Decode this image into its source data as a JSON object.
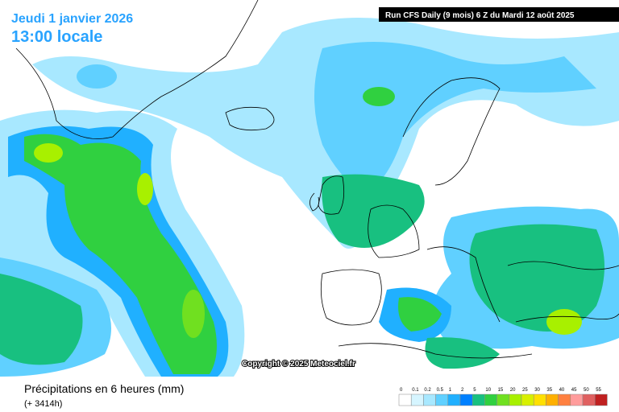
{
  "header": {
    "date": "Jeudi 1 janvier 2026",
    "time": "13:00 locale",
    "run": "Run CFS Daily (9 mois) 6 Z du Mardi 12 août 2025"
  },
  "copyright": "Copyright © 2025 Meteociel.fr",
  "footer": {
    "title": "Précipitations en 6 heures (mm)",
    "lead": "(+ 3414h)"
  },
  "scale": {
    "labels": [
      0,
      0.1,
      0.2,
      0.5,
      1,
      2,
      5,
      10,
      15,
      20,
      25,
      30,
      35,
      40,
      45,
      50,
      55
    ],
    "colors": [
      "#ffffff",
      "#d6f5ff",
      "#a8e8ff",
      "#60d0ff",
      "#20b0ff",
      "#0080ff",
      "#18c080",
      "#30d040",
      "#70e020",
      "#a8f000",
      "#d8f000",
      "#ffe000",
      "#ffb000",
      "#ff8040",
      "#ff9c9c",
      "#e06060",
      "#c02020"
    ]
  }
}
